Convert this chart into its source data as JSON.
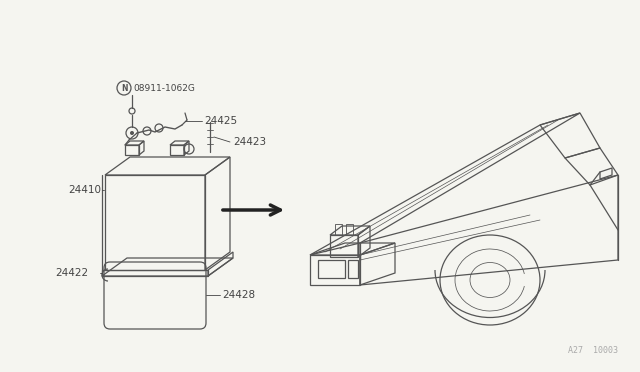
{
  "bg_color": "#f5f5f0",
  "line_color": "#555555",
  "label_color": "#444444",
  "fig_width": 6.4,
  "fig_height": 3.72,
  "dpi": 100,
  "watermark": "A27  10003"
}
